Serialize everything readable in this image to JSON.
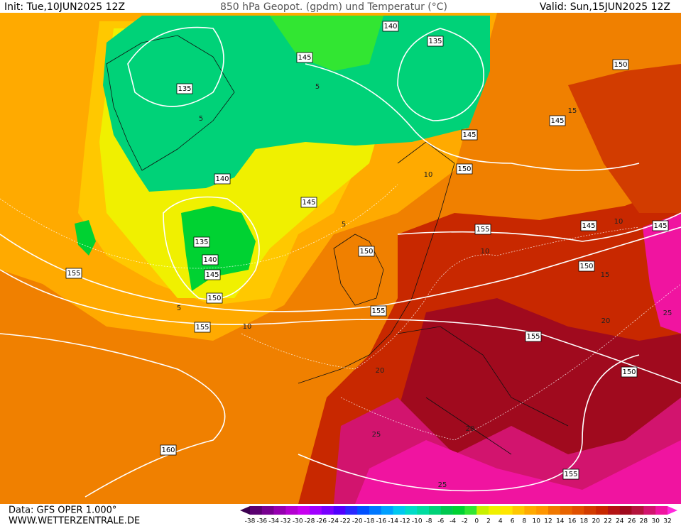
{
  "header": {
    "init": "Init: Tue,10JUN2025 12Z",
    "title": "850 hPa Geopot. (gpdm) und Temperatur (°C)",
    "valid": "Valid: Sun,15JUN2025 12Z"
  },
  "geopotential_labels": [
    140,
    135,
    145,
    135,
    150,
    145,
    145,
    150,
    140,
    145,
    155,
    145,
    145,
    135,
    140,
    150,
    150,
    145,
    155,
    150,
    155,
    155,
    155,
    150,
    160,
    155
  ],
  "temperature_labels": [
    5,
    5,
    5,
    5,
    10,
    10,
    10,
    10,
    15,
    15,
    20,
    20,
    20,
    25,
    25,
    25
  ],
  "footer": {
    "data": "Data: GFS OPER 1.000°",
    "site": "WWW.WETTERZENTRALE.DE"
  },
  "colorbar": {
    "labels": [
      -38,
      -36,
      -34,
      -32,
      -30,
      -28,
      -26,
      -24,
      -22,
      -20,
      -18,
      -16,
      -14,
      -12,
      -10,
      -8,
      -6,
      -4,
      -2,
      0,
      2,
      4,
      6,
      8,
      10,
      12,
      14,
      16,
      18,
      20,
      22,
      24,
      26,
      28,
      30,
      32
    ],
    "colors": [
      "#3c0050",
      "#5a0070",
      "#780090",
      "#9600b0",
      "#b400d0",
      "#c800f0",
      "#a000ff",
      "#7800ff",
      "#5000ff",
      "#2828ff",
      "#0050ff",
      "#0078ff",
      "#00a0ff",
      "#00c8f0",
      "#00dcc8",
      "#00dca0",
      "#00d278",
      "#00c850",
      "#00d232",
      "#32e632",
      "#c8f000",
      "#f0f000",
      "#ffe600",
      "#ffc800",
      "#ffaa00",
      "#ff9600",
      "#f07800",
      "#e86400",
      "#e05000",
      "#d23c00",
      "#c82800",
      "#b41414",
      "#a00a1e",
      "#b4143c",
      "#d2146e",
      "#f014a0",
      "#ff28dc"
    ]
  }
}
